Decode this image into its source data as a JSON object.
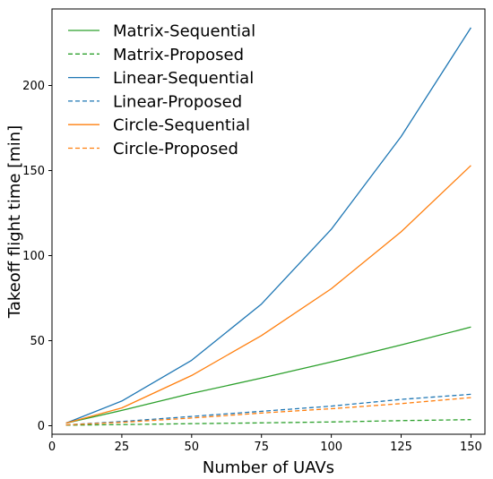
{
  "chart_data": {
    "type": "line",
    "title": "",
    "xlabel": "Number of UAVs",
    "ylabel": "Takeoff flight time [min]",
    "xlim": [
      0,
      155
    ],
    "ylim": [
      -5,
      245
    ],
    "x_ticks": [
      0,
      25,
      50,
      75,
      100,
      125,
      150
    ],
    "y_ticks": [
      0,
      50,
      100,
      150,
      200
    ],
    "grid": false,
    "legend_position": "upper-left",
    "x": [
      5,
      25,
      50,
      75,
      100,
      125,
      150
    ],
    "series": [
      {
        "name": "Matrix-Sequential",
        "color": "#2ca02c",
        "style": "solid",
        "values": [
          1.5,
          9,
          19,
          28,
          37.5,
          47.5,
          58
        ]
      },
      {
        "name": "Matrix-Proposed",
        "color": "#2ca02c",
        "style": "dashed",
        "values": [
          0.3,
          0.7,
          1.2,
          1.7,
          2.2,
          3.0,
          3.6
        ]
      },
      {
        "name": "Linear-Sequential",
        "color": "#1f77b4",
        "style": "solid",
        "values": [
          1.5,
          14.5,
          38.5,
          71.5,
          115.5,
          170,
          234
        ]
      },
      {
        "name": "Linear-Proposed",
        "color": "#1f77b4",
        "style": "dashed",
        "values": [
          0.5,
          2.5,
          5.5,
          8.5,
          11.5,
          15.5,
          18.5
        ]
      },
      {
        "name": "Circle-Sequential",
        "color": "#ff7f0e",
        "style": "solid",
        "values": [
          1.5,
          10.5,
          29.5,
          53,
          80.5,
          114,
          153
        ]
      },
      {
        "name": "Circle-Proposed",
        "color": "#ff7f0e",
        "style": "dashed",
        "values": [
          0.5,
          2,
          4.5,
          7.5,
          10,
          13,
          16.5
        ]
      }
    ]
  }
}
